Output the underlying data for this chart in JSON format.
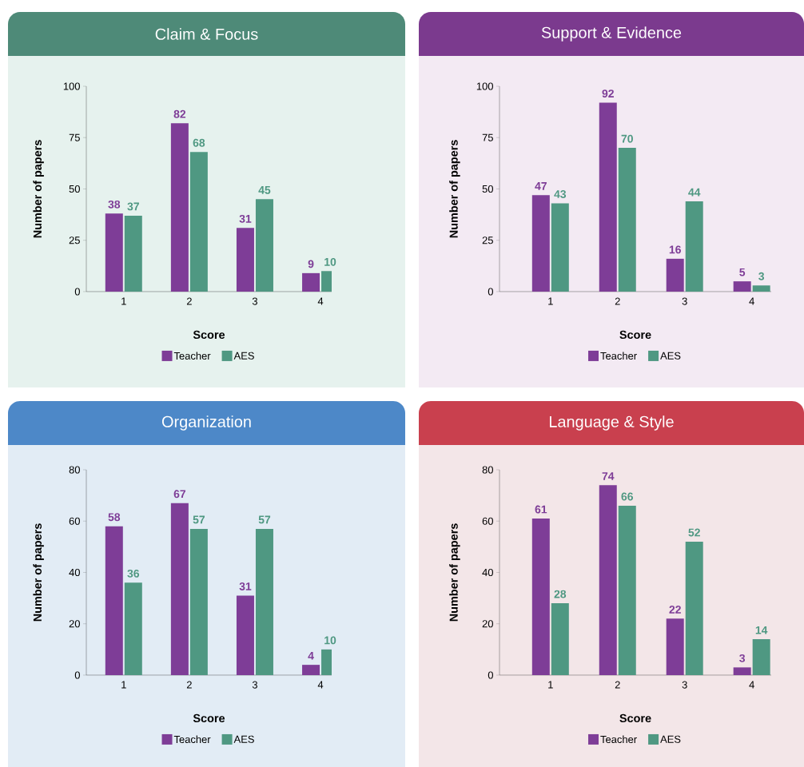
{
  "chart_data": [
    {
      "type": "bar",
      "title": "Claim & Focus",
      "xlabel": "Score",
      "ylabel": "Number of papers",
      "categories": [
        "1",
        "2",
        "3",
        "4"
      ],
      "series": [
        {
          "name": "Teacher",
          "color": "#7e3d97",
          "values": [
            38,
            82,
            31,
            9
          ]
        },
        {
          "name": "AES",
          "color": "#4f9882",
          "values": [
            37,
            68,
            45,
            10
          ]
        }
      ],
      "ylim": [
        0,
        100
      ],
      "yticks": [
        0,
        25,
        50,
        75,
        100
      ],
      "data_labels": true,
      "legend": "bottom"
    },
    {
      "type": "bar",
      "title": "Support & Evidence",
      "xlabel": "Score",
      "ylabel": "Number of papers",
      "categories": [
        "1",
        "2",
        "3",
        "4"
      ],
      "series": [
        {
          "name": "Teacher",
          "color": "#7e3d97",
          "values": [
            47,
            92,
            16,
            5
          ]
        },
        {
          "name": "AES",
          "color": "#4f9882",
          "values": [
            43,
            70,
            44,
            3
          ]
        }
      ],
      "ylim": [
        0,
        100
      ],
      "yticks": [
        0,
        25,
        50,
        75,
        100
      ],
      "data_labels": true,
      "legend": "bottom"
    },
    {
      "type": "bar",
      "title": "Organization",
      "xlabel": "Score",
      "ylabel": "Number of papers",
      "categories": [
        "1",
        "2",
        "3",
        "4"
      ],
      "series": [
        {
          "name": "Teacher",
          "color": "#7e3d97",
          "values": [
            58,
            67,
            31,
            4
          ]
        },
        {
          "name": "AES",
          "color": "#4f9882",
          "values": [
            36,
            57,
            57,
            10
          ]
        }
      ],
      "ylim": [
        0,
        80
      ],
      "yticks": [
        0,
        20,
        40,
        60,
        80
      ],
      "data_labels": true,
      "legend": "bottom"
    },
    {
      "type": "bar",
      "title": "Language & Style",
      "xlabel": "Score",
      "ylabel": "Number of papers",
      "categories": [
        "1",
        "2",
        "3",
        "4"
      ],
      "series": [
        {
          "name": "Teacher",
          "color": "#7e3d97",
          "values": [
            61,
            74,
            22,
            3
          ]
        },
        {
          "name": "AES",
          "color": "#4f9882",
          "values": [
            28,
            66,
            52,
            14
          ]
        }
      ],
      "ylim": [
        0,
        80
      ],
      "yticks": [
        0,
        20,
        40,
        60,
        80
      ],
      "data_labels": true,
      "legend": "bottom"
    }
  ]
}
